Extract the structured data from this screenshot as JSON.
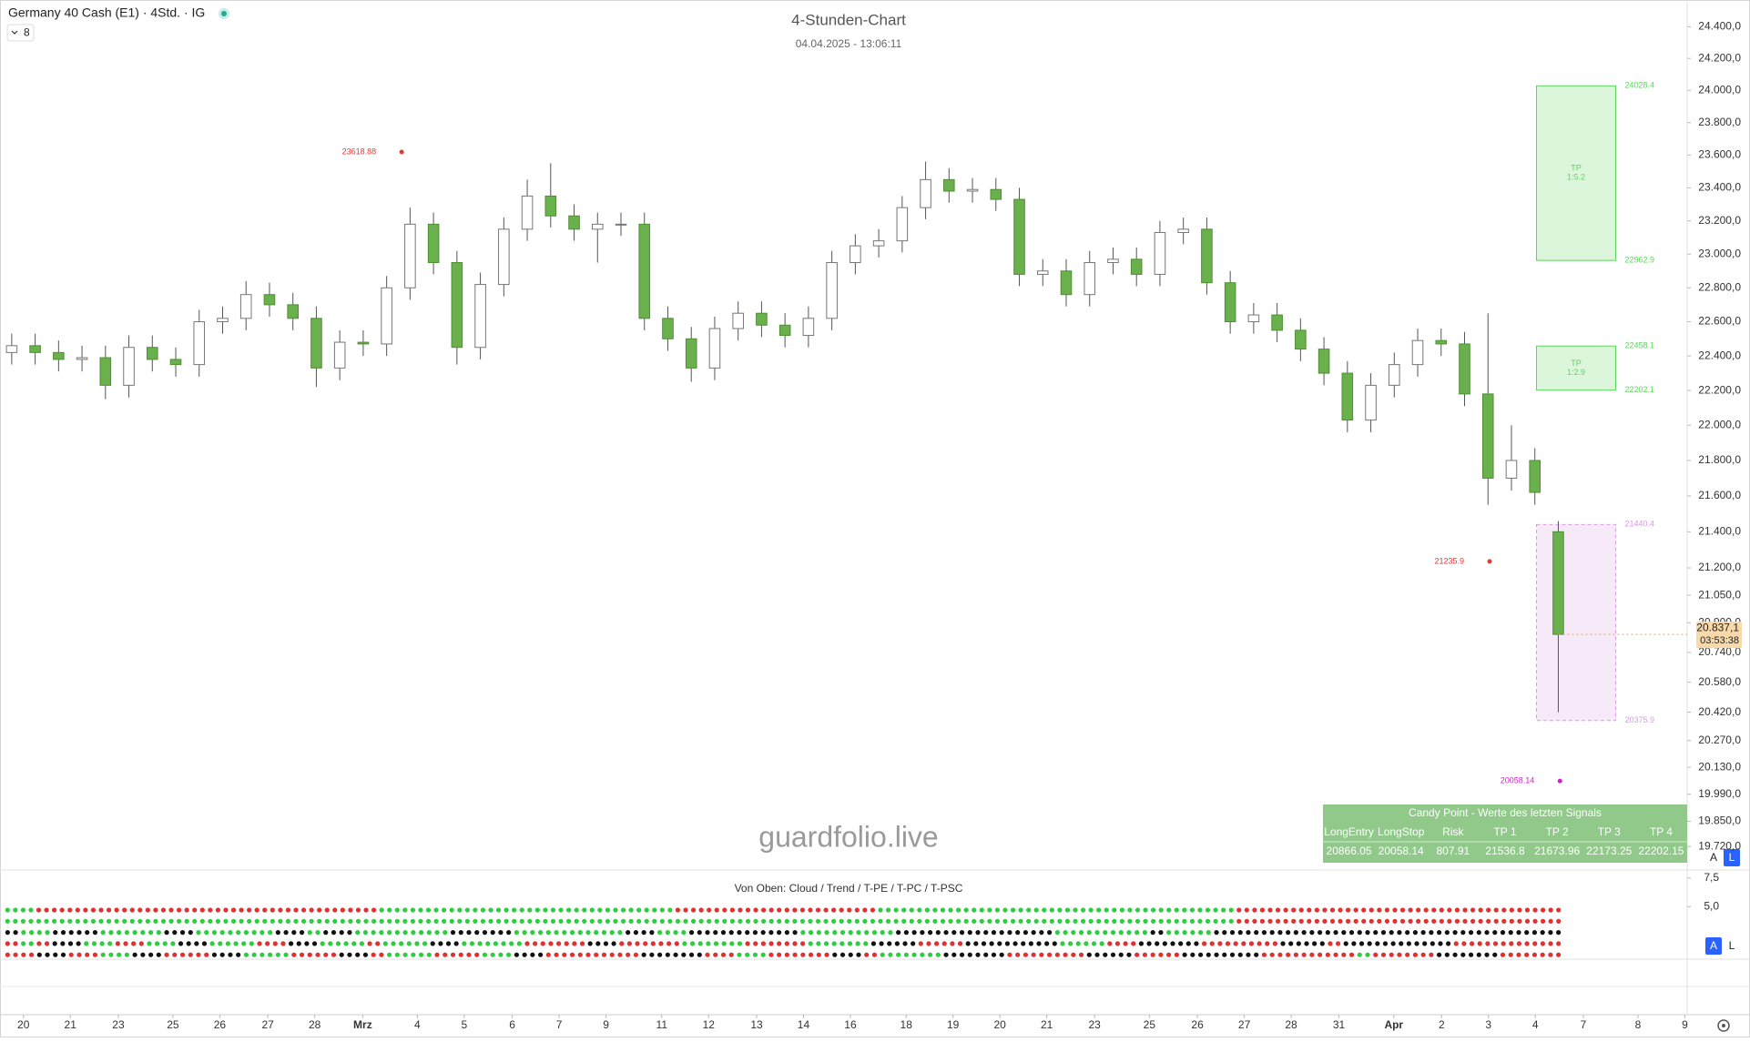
{
  "header": {
    "symbol": "Germany 40 Cash (E1) · 4Std. · IG",
    "indicator_count": "8"
  },
  "buttons": [
    "A",
    "L"
  ],
  "watermark": "guardfolio.live",
  "chart_data": [
    {
      "type": "candlestick",
      "title": "4-Stunden-Chart",
      "subtitle": "04.04.2025 - 13:06:11",
      "log": true,
      "xlim": [
        0,
        72
      ],
      "ylim": [
        19600,
        24570
      ],
      "yticks": [
        {
          "value": 24400,
          "label": "24.400,0"
        },
        {
          "value": 24200,
          "label": "24.200,0"
        },
        {
          "value": 24000,
          "label": "24.000,0"
        },
        {
          "value": 23800,
          "label": "23.800,0"
        },
        {
          "value": 23600,
          "label": "23.600,0"
        },
        {
          "value": 23400,
          "label": "23.400,0"
        },
        {
          "value": 23200,
          "label": "23.200,0"
        },
        {
          "value": 23000,
          "label": "23.000,0"
        },
        {
          "value": 22800,
          "label": "22.800,0"
        },
        {
          "value": 22600,
          "label": "22.600,0"
        },
        {
          "value": 22400,
          "label": "22.400,0"
        },
        {
          "value": 22200,
          "label": "22.200,0"
        },
        {
          "value": 22000,
          "label": "22.000,0"
        },
        {
          "value": 21800,
          "label": "21.800,0"
        },
        {
          "value": 21600,
          "label": "21.600,0"
        },
        {
          "value": 21400,
          "label": "21.400,0"
        },
        {
          "value": 21200,
          "label": "21.200,0"
        },
        {
          "value": 21050,
          "label": "21.050,0"
        },
        {
          "value": 20900,
          "label": "20.900,0"
        },
        {
          "value": 20740,
          "label": "20.740,0"
        },
        {
          "value": 20580,
          "label": "20.580,0"
        },
        {
          "value": 20420,
          "label": "20.420,0"
        },
        {
          "value": 20270,
          "label": "20.270,0"
        },
        {
          "value": 20130,
          "label": "20.130,0"
        },
        {
          "value": 19990,
          "label": "19.990,0"
        },
        {
          "value": 19850,
          "label": "19.850,0"
        },
        {
          "value": 19720,
          "label": "19.720,0"
        }
      ],
      "xticks": [
        {
          "value": 1,
          "label": "20"
        },
        {
          "value": 3,
          "label": "21"
        },
        {
          "value": 5.05,
          "label": "23"
        },
        {
          "value": 7.38,
          "label": "25"
        },
        {
          "value": 9.38,
          "label": "26"
        },
        {
          "value": 11.43,
          "label": "27"
        },
        {
          "value": 13.43,
          "label": "28"
        },
        {
          "value": 15.48,
          "label": "Mrz"
        },
        {
          "value": 17.81,
          "label": "4"
        },
        {
          "value": 19.81,
          "label": "5"
        },
        {
          "value": 21.86,
          "label": "6"
        },
        {
          "value": 23.86,
          "label": "7"
        },
        {
          "value": 25.86,
          "label": "9"
        },
        {
          "value": 28.24,
          "label": "11"
        },
        {
          "value": 30.24,
          "label": "12"
        },
        {
          "value": 32.29,
          "label": "13"
        },
        {
          "value": 34.29,
          "label": "14"
        },
        {
          "value": 36.29,
          "label": "16"
        },
        {
          "value": 38.67,
          "label": "18"
        },
        {
          "value": 40.67,
          "label": "19"
        },
        {
          "value": 42.67,
          "label": "20"
        },
        {
          "value": 44.67,
          "label": "21"
        },
        {
          "value": 46.71,
          "label": "23"
        },
        {
          "value": 49.05,
          "label": "25"
        },
        {
          "value": 51.1,
          "label": "26"
        },
        {
          "value": 53.1,
          "label": "27"
        },
        {
          "value": 55.1,
          "label": "28"
        },
        {
          "value": 57.14,
          "label": "31"
        },
        {
          "value": 59.48,
          "label": "Apr"
        },
        {
          "value": 61.52,
          "label": "2"
        },
        {
          "value": 63.52,
          "label": "3"
        },
        {
          "value": 65.52,
          "label": "4"
        },
        {
          "value": 67.57,
          "label": "7"
        },
        {
          "value": 69.9,
          "label": "8"
        },
        {
          "value": 71.9,
          "label": "9"
        }
      ],
      "up_color": "#ffffff",
      "down_color": "#6ab04c",
      "wick_color": "#555555",
      "open": [
        22420,
        22460,
        22420,
        22380,
        22390,
        22230,
        22450,
        22380,
        22350,
        22600,
        22620,
        22760,
        22700,
        22620,
        22330,
        22480,
        22470,
        22800,
        23180,
        22950,
        22450,
        22820,
        23150,
        23350,
        23230,
        23150,
        23180,
        23180,
        22620,
        22500,
        22330,
        22560,
        22650,
        22580,
        22520,
        22620,
        22950,
        23050,
        23080,
        23280,
        23450,
        23380,
        23390,
        23330,
        22880,
        22900,
        22760,
        22950,
        22970,
        22880,
        23130,
        23150,
        22830,
        22600,
        22640,
        22550,
        22440,
        22300,
        22030,
        22230,
        22350,
        22490,
        22470,
        22180,
        21700,
        21800,
        21400
      ],
      "high": [
        22530,
        22530,
        22490,
        22460,
        22460,
        22520,
        22520,
        22450,
        22670,
        22690,
        22840,
        22830,
        22770,
        22690,
        22550,
        22550,
        22870,
        23280,
        23250,
        23020,
        22890,
        23220,
        23450,
        23550,
        23300,
        23250,
        23250,
        23250,
        22690,
        22570,
        22630,
        22720,
        22720,
        22650,
        22690,
        23020,
        23120,
        23150,
        23350,
        23560,
        23520,
        23460,
        23460,
        23400,
        22970,
        22970,
        23020,
        23040,
        23040,
        23200,
        23220,
        23220,
        22900,
        22710,
        22710,
        22620,
        22510,
        22370,
        22300,
        22420,
        22560,
        22560,
        22540,
        22650,
        22000,
        21870,
        21460
      ],
      "low": [
        22350,
        22350,
        22310,
        22310,
        22150,
        22160,
        22310,
        22280,
        22280,
        22530,
        22550,
        22630,
        22550,
        22220,
        22260,
        22400,
        22400,
        22730,
        22880,
        22350,
        22380,
        22750,
        23080,
        23160,
        23080,
        22950,
        23110,
        22550,
        22430,
        22250,
        22260,
        22490,
        22510,
        22450,
        22450,
        22550,
        22880,
        22980,
        23010,
        23210,
        23310,
        23310,
        23260,
        22810,
        22810,
        22690,
        22690,
        22880,
        22810,
        22810,
        23060,
        22760,
        22530,
        22530,
        22480,
        22370,
        22230,
        21960,
        21960,
        22160,
        22280,
        22400,
        22110,
        21550,
        21630,
        21550,
        20420
      ],
      "close": [
        22460,
        22420,
        22380,
        22390,
        22230,
        22450,
        22380,
        22350,
        22600,
        22620,
        22760,
        22700,
        22620,
        22330,
        22480,
        22470,
        22800,
        23180,
        22950,
        22450,
        22820,
        23150,
        23350,
        23230,
        23150,
        23180,
        23180,
        22620,
        22500,
        22330,
        22560,
        22650,
        22580,
        22520,
        22620,
        22950,
        23050,
        23080,
        23280,
        23450,
        23380,
        23390,
        23330,
        22880,
        22900,
        22760,
        22950,
        22970,
        22880,
        23130,
        23150,
        22830,
        22600,
        22640,
        22550,
        22440,
        22300,
        22030,
        22230,
        22350,
        22490,
        22470,
        22180,
        21700,
        21800,
        21620,
        20837
      ],
      "zones": [
        {
          "top": 24028.4,
          "bottom": 22962.9,
          "x": [
            65.57,
            68.95
          ],
          "color": "#5cd65c",
          "label": [
            "TP",
            "1:5.2"
          ]
        },
        {
          "top": 22458.1,
          "bottom": 22202.1,
          "x": [
            65.57,
            68.95
          ],
          "color": "#5cd65c",
          "label": [
            "TP",
            "1:2.9"
          ]
        },
        {
          "top": 21440.4,
          "bottom": 20375.9,
          "x": [
            65.57,
            68.95
          ],
          "color": "#d79be0"
        }
      ],
      "price_labels": [
        {
          "value": 23618.88,
          "x": 17.14,
          "color": "#e53935"
        },
        {
          "value": 21235.9,
          "x": 63.57,
          "color": "#e53935"
        },
        {
          "value": 20058.14,
          "x": 66.57,
          "color": "#d81bd8"
        }
      ],
      "last_price": {
        "value": 20837.1,
        "label": "20.837,1"
      },
      "countdown": "03:53:38"
    },
    {
      "type": "signal-dots",
      "title": "Von Oben: Cloud / Trend / T-PE / T-PC / T-PSC",
      "ylim": [
        0.4,
        8.2
      ],
      "yticks": [
        {
          "value": 7.5,
          "label": "7,5"
        },
        {
          "value": 5,
          "label": "5,0"
        }
      ],
      "palette": {
        "g": "#2ecc40",
        "r": "#e0302f",
        "b": "#111111"
      },
      "rows": [
        "ggrrrrrrrrrrrrrrrrrrrrrrgggggggggggggggggggrrrrrrrrrrrrrgggggggggggggggggggggggrrrrrrrrrrrrrrrrrrrrr",
        "gggggggggggggggggggggggggggggggggggggggggggggggggggggggggggggggggggggggggggggggrrrrrrrrrrrrrrrrrrrrr",
        "bggbbbggggbbgggggbbgbbggggggbbbbgggggggbbggbbbbbbbggggggbbbbbbbbbbggggggbgggbbbbbbbbbbbbbbbbbbbbbb",
        "rgrbbggrrggbbgggrrbbgggrgggbbggggrrrrbbrrrrggggrrrrggggbbbrrrbbbbbbgggrrbbbbrrrrrbbbrbbbbbbbrrrrrrr",
        "rrbbrrggbbrrrbbgggrrrbbrgggrrrggbbrrrrrrbbbbrrggrrrrbbrggggbbbbrrrrrbbbrrrbbbbbrrrrrrgrrrrbbbbrrrr"
      ]
    }
  ],
  "table": {
    "title": "Candy Point - Werte des letzten Signals",
    "headers": [
      "LongEntry",
      "LongStop",
      "Risk",
      "TP 1",
      "TP 2",
      "TP 3",
      "TP 4"
    ],
    "values": [
      20866.05,
      20058.14,
      807.91,
      21536.8,
      21673.96,
      22173.25,
      22202.15
    ]
  }
}
